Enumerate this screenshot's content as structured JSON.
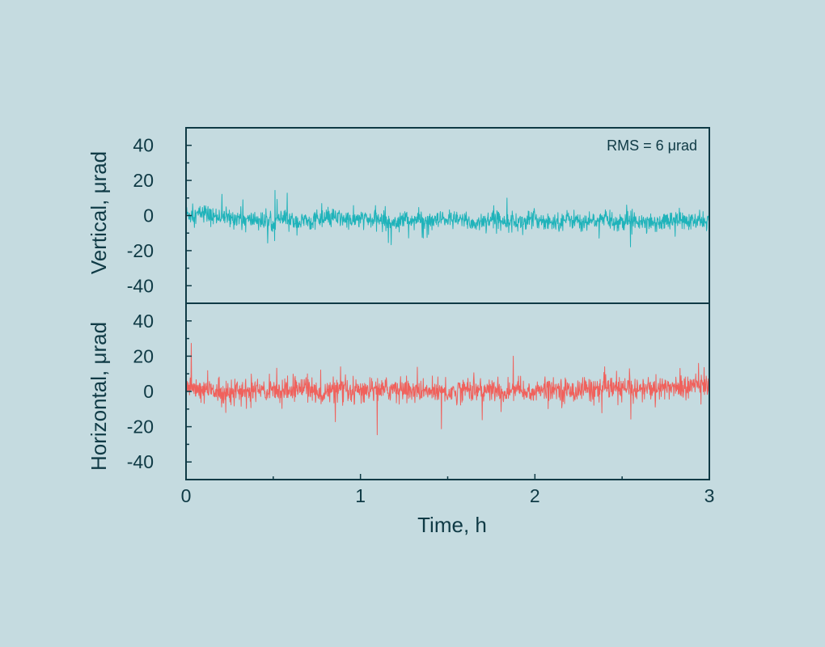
{
  "colors": {
    "background": "#c5dbe0",
    "axis": "#0f3a45",
    "vertical_series": "#1fb3ba",
    "horizontal_series": "#f0615c"
  },
  "chart_data": {
    "type": "line",
    "xlabel": "Time, h",
    "xlim": [
      0,
      3
    ],
    "xticks": [
      0,
      1,
      2,
      3
    ],
    "xtick_labels": [
      "0",
      "1",
      "2",
      "3"
    ],
    "x_minor_step": 0.5,
    "grid": false,
    "legend": "none",
    "panels": [
      {
        "id": "vertical",
        "ylabel": "Vertical, μrad",
        "ylim": [
          -50,
          50
        ],
        "yticks": [
          -40,
          -20,
          0,
          20,
          40
        ],
        "ytick_labels": [
          "-40",
          "-20",
          "0",
          "20",
          "40"
        ],
        "y_minor_step": 10,
        "annotation": "RMS = 6 μrad",
        "series": [
          {
            "color": "#1fb3ba",
            "x": [
              0,
              0.05,
              0.1,
              0.15,
              0.2,
              0.25,
              0.3,
              0.35,
              0.4,
              0.45,
              0.5,
              0.55,
              0.6,
              0.65,
              0.7,
              0.75,
              0.8,
              0.85,
              0.9,
              0.95,
              1.0,
              1.05,
              1.1,
              1.15,
              1.2,
              1.25,
              1.3,
              1.35,
              1.4,
              1.45,
              1.5,
              1.55,
              1.6,
              1.65,
              1.7,
              1.75,
              1.8,
              1.85,
              1.9,
              1.95,
              2.0,
              2.05,
              2.1,
              2.15,
              2.2,
              2.25,
              2.3,
              2.35,
              2.4,
              2.45,
              2.5,
              2.55,
              2.6,
              2.65,
              2.7,
              2.75,
              2.8,
              2.85,
              2.9,
              2.95,
              3.0
            ],
            "y": [
              1,
              0,
              2,
              -1,
              0,
              -2,
              -1,
              -3,
              -2,
              -4,
              -3,
              -2,
              -3,
              -4,
              -3,
              -2,
              -3,
              -1,
              -2,
              -3,
              -2,
              -3,
              -2,
              -4,
              -3,
              -2,
              -3,
              -2,
              -4,
              -3,
              -2,
              -3,
              -2,
              -5,
              -3,
              -2,
              -3,
              -2,
              -4,
              -3,
              -2,
              -3,
              -4,
              -3,
              -2,
              -3,
              -4,
              -3,
              -2,
              -3,
              -4,
              -3,
              -2,
              -3,
              -4,
              -3,
              -2,
              -3,
              -4,
              -3,
              -3
            ]
          }
        ]
      },
      {
        "id": "horizontal",
        "ylabel": "Horizontal, μrad",
        "ylim": [
          -50,
          50
        ],
        "yticks": [
          -40,
          -20,
          0,
          20,
          40
        ],
        "ytick_labels": [
          "-40",
          "-20",
          "0",
          "20",
          "40"
        ],
        "y_minor_step": 10,
        "annotation": "",
        "series": [
          {
            "color": "#f0615c",
            "x": [
              0,
              0.05,
              0.1,
              0.15,
              0.2,
              0.25,
              0.3,
              0.35,
              0.4,
              0.45,
              0.5,
              0.55,
              0.6,
              0.65,
              0.7,
              0.75,
              0.8,
              0.85,
              0.9,
              0.95,
              1.0,
              1.05,
              1.1,
              1.15,
              1.2,
              1.25,
              1.3,
              1.35,
              1.4,
              1.45,
              1.5,
              1.55,
              1.6,
              1.65,
              1.7,
              1.75,
              1.8,
              1.85,
              1.9,
              1.95,
              2.0,
              2.05,
              2.1,
              2.15,
              2.2,
              2.25,
              2.3,
              2.35,
              2.4,
              2.45,
              2.5,
              2.55,
              2.6,
              2.65,
              2.7,
              2.75,
              2.8,
              2.85,
              2.9,
              2.95,
              3.0
            ],
            "y": [
              1,
              2,
              0,
              1,
              -1,
              1,
              0,
              -1,
              1,
              0,
              2,
              1,
              0,
              2,
              4,
              -2,
              -1,
              1,
              0,
              -1,
              0,
              1,
              2,
              1,
              2,
              0,
              1,
              -1,
              0,
              1,
              -1,
              0,
              2,
              1,
              0,
              1,
              -1,
              0,
              1,
              -1,
              0,
              1,
              2,
              1,
              0,
              1,
              2,
              0,
              1,
              2,
              1,
              2,
              1,
              2,
              1,
              2,
              3,
              2,
              3,
              4,
              3
            ]
          }
        ]
      }
    ]
  }
}
